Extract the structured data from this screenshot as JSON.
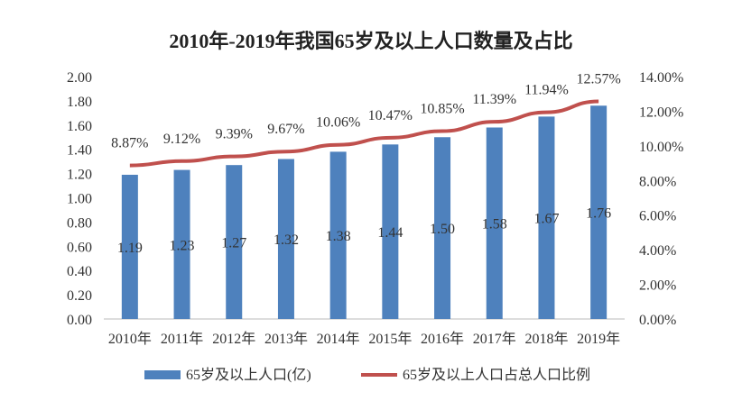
{
  "chart_data": {
    "type": "bar+line",
    "title": "2010年-2019年我国65岁及以上人口数量及占比",
    "categories": [
      "2010年",
      "2011年",
      "2012年",
      "2013年",
      "2014年",
      "2015年",
      "2016年",
      "2017年",
      "2018年",
      "2019年"
    ],
    "series": [
      {
        "name": "65岁及以上人口(亿)",
        "type": "bar",
        "axis": "left",
        "color": "#4e81bd",
        "values": [
          1.19,
          1.23,
          1.27,
          1.32,
          1.38,
          1.44,
          1.5,
          1.58,
          1.67,
          1.76
        ],
        "labels": [
          "1.19",
          "1.23",
          "1.27",
          "1.32",
          "1.38",
          "1.44",
          "1.50",
          "1.58",
          "1.67",
          "1.76"
        ]
      },
      {
        "name": "65岁及以上人口占总人口比例",
        "type": "line",
        "axis": "right",
        "color": "#c0504d",
        "values": [
          8.87,
          9.12,
          9.39,
          9.67,
          10.06,
          10.47,
          10.85,
          11.39,
          11.94,
          12.57
        ],
        "labels": [
          "8.87%",
          "9.12%",
          "9.39%",
          "9.67%",
          "10.06%",
          "10.47%",
          "10.85%",
          "11.39%",
          "11.94%",
          "12.57%"
        ]
      }
    ],
    "ylim_left": [
      0,
      2.0
    ],
    "yticks_left": [
      "0.00",
      "0.20",
      "0.40",
      "0.60",
      "0.80",
      "1.00",
      "1.20",
      "1.40",
      "1.60",
      "1.80",
      "2.00"
    ],
    "ylim_right": [
      0,
      14
    ],
    "yticks_right": [
      "0.00%",
      "2.00%",
      "4.00%",
      "6.00%",
      "8.00%",
      "10.00%",
      "12.00%",
      "14.00%"
    ],
    "grid": false,
    "legend_position": "bottom"
  }
}
